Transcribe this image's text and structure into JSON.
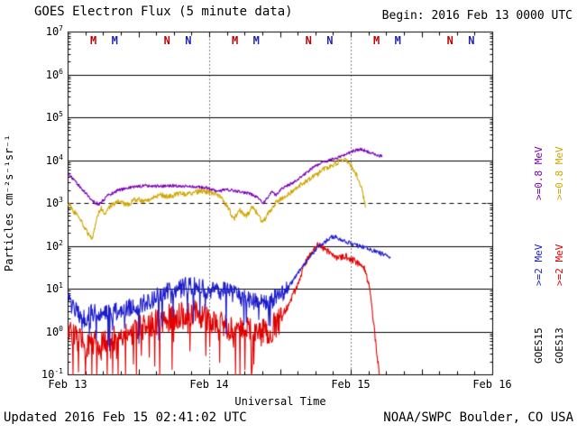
{
  "header": {
    "title": "GOES Electron Flux (5 minute data)",
    "begin": "Begin: 2016 Feb 13 0000 UTC"
  },
  "footer": {
    "updated": "Updated 2016 Feb 15 02:41:02 UTC",
    "credit": "NOAA/SWPC Boulder, CO USA"
  },
  "legend": {
    "goes15": {
      "name": "GOES15",
      "e08": ">=0.8 MeV",
      "e2": ">=2 MeV",
      "e08_color": "#7a00b4",
      "e2_color": "#1c1ccc"
    },
    "goes13": {
      "name": "GOES13",
      "e08": ">=0.8 MeV",
      "e2": ">=2 MeV",
      "e08_color": "#cfa600",
      "e2_color": "#e00000"
    }
  },
  "chart_data": {
    "type": "line",
    "title": "GOES Electron Flux (5 minute data)",
    "xlabel": "Universal Time",
    "ylabel": "Particles cm⁻²s⁻¹sr⁻¹",
    "x_range_days": [
      0,
      3
    ],
    "y_log_range": [
      -1,
      7
    ],
    "x_tick_labels": [
      "Feb 13",
      "Feb 14",
      "Feb 15",
      "Feb 16"
    ],
    "y_tick_exponents": [
      7,
      6,
      5,
      4,
      3,
      2,
      1,
      0,
      -1
    ],
    "threshold_log10": 3,
    "grid": true,
    "noise_seed": 20160213,
    "markers": [
      {
        "t": 0.185,
        "label": "M",
        "color": "#c00000"
      },
      {
        "t": 0.335,
        "label": "M",
        "color": "#2121b0"
      },
      {
        "t": 0.705,
        "label": "N",
        "color": "#c00000"
      },
      {
        "t": 0.855,
        "label": "N",
        "color": "#2121b0"
      },
      {
        "t": 1.185,
        "label": "M",
        "color": "#c00000"
      },
      {
        "t": 1.335,
        "label": "M",
        "color": "#2121b0"
      },
      {
        "t": 1.705,
        "label": "N",
        "color": "#c00000"
      },
      {
        "t": 1.855,
        "label": "N",
        "color": "#2121b0"
      },
      {
        "t": 2.185,
        "label": "M",
        "color": "#c00000"
      },
      {
        "t": 2.335,
        "label": "M",
        "color": "#2121b0"
      },
      {
        "t": 2.705,
        "label": "N",
        "color": "#c00000"
      },
      {
        "t": 2.855,
        "label": "N",
        "color": "#2121b0"
      }
    ],
    "series": [
      {
        "name": "GOES13 >=0.8 MeV",
        "satellite": "GOES13",
        "energy": ">=0.8 MeV",
        "color": "#cfa600",
        "noise": {
          "amp": 0.06,
          "spike_prob": 0,
          "spike_depth": 0,
          "calm_after": 99,
          "calm_amp": 0.06
        },
        "points": [
          [
            0.0,
            1000
          ],
          [
            0.05,
            600
          ],
          [
            0.1,
            350
          ],
          [
            0.14,
            200
          ],
          [
            0.17,
            150
          ],
          [
            0.2,
            400
          ],
          [
            0.23,
            800
          ],
          [
            0.26,
            550
          ],
          [
            0.3,
            900
          ],
          [
            0.36,
            1100
          ],
          [
            0.42,
            950
          ],
          [
            0.48,
            1250
          ],
          [
            0.54,
            1100
          ],
          [
            0.6,
            1400
          ],
          [
            0.66,
            1550
          ],
          [
            0.72,
            1450
          ],
          [
            0.78,
            1700
          ],
          [
            0.84,
            1600
          ],
          [
            0.9,
            1850
          ],
          [
            0.96,
            1950
          ],
          [
            1.02,
            1700
          ],
          [
            1.08,
            1400
          ],
          [
            1.14,
            700
          ],
          [
            1.17,
            420
          ],
          [
            1.21,
            700
          ],
          [
            1.26,
            500
          ],
          [
            1.3,
            800
          ],
          [
            1.34,
            600
          ],
          [
            1.375,
            350
          ],
          [
            1.41,
            550
          ],
          [
            1.45,
            900
          ],
          [
            1.5,
            1250
          ],
          [
            1.56,
            1700
          ],
          [
            1.62,
            2400
          ],
          [
            1.68,
            3200
          ],
          [
            1.74,
            4300
          ],
          [
            1.8,
            6000
          ],
          [
            1.86,
            7800
          ],
          [
            1.92,
            9500
          ],
          [
            1.96,
            10000
          ],
          [
            2.0,
            7500
          ],
          [
            2.04,
            4500
          ],
          [
            2.07,
            2500
          ],
          [
            2.09,
            1300
          ],
          [
            2.105,
            800
          ]
        ]
      },
      {
        "name": "GOES15 >=0.8 MeV",
        "satellite": "GOES15",
        "energy": ">=0.8 MeV",
        "color": "#7a00b4",
        "noise": {
          "amp": 0.035,
          "spike_prob": 0,
          "spike_depth": 0,
          "calm_after": 99,
          "calm_amp": 0.035
        },
        "points": [
          [
            0.0,
            5000
          ],
          [
            0.06,
            3000
          ],
          [
            0.12,
            1800
          ],
          [
            0.18,
            1100
          ],
          [
            0.22,
            950
          ],
          [
            0.28,
            1500
          ],
          [
            0.35,
            2000
          ],
          [
            0.45,
            2400
          ],
          [
            0.55,
            2600
          ],
          [
            0.65,
            2500
          ],
          [
            0.75,
            2600
          ],
          [
            0.85,
            2500
          ],
          [
            0.95,
            2400
          ],
          [
            1.0,
            2200
          ],
          [
            1.06,
            1900
          ],
          [
            1.12,
            2100
          ],
          [
            1.2,
            1900
          ],
          [
            1.28,
            1700
          ],
          [
            1.34,
            1400
          ],
          [
            1.38,
            1000
          ],
          [
            1.41,
            1400
          ],
          [
            1.44,
            2000
          ],
          [
            1.47,
            1500
          ],
          [
            1.5,
            2100
          ],
          [
            1.55,
            2600
          ],
          [
            1.6,
            3200
          ],
          [
            1.66,
            4500
          ],
          [
            1.72,
            6500
          ],
          [
            1.78,
            8500
          ],
          [
            1.84,
            10000
          ],
          [
            1.9,
            11500
          ],
          [
            1.96,
            14000
          ],
          [
            2.02,
            17000
          ],
          [
            2.07,
            18500
          ],
          [
            2.12,
            16000
          ],
          [
            2.17,
            14000
          ],
          [
            2.22,
            12500
          ]
        ]
      },
      {
        "name": "GOES13 >=2 MeV",
        "satellite": "GOES13",
        "energy": ">=2 MeV",
        "color": "#e00000",
        "noise": {
          "amp": 0.32,
          "spike_prob": 0.12,
          "spike_depth": 1.2,
          "calm_after": 1.52,
          "calm_amp": 0.08
        },
        "points": [
          [
            0.0,
            1.2
          ],
          [
            0.06,
            0.7
          ],
          [
            0.12,
            0.45
          ],
          [
            0.18,
            0.6
          ],
          [
            0.25,
            0.5
          ],
          [
            0.32,
            0.7
          ],
          [
            0.4,
            0.9
          ],
          [
            0.48,
            1.1
          ],
          [
            0.56,
            1.4
          ],
          [
            0.64,
            1.8
          ],
          [
            0.72,
            2.2
          ],
          [
            0.8,
            2.5
          ],
          [
            0.88,
            2.8
          ],
          [
            0.96,
            2.2
          ],
          [
            1.04,
            1.7
          ],
          [
            1.12,
            1.3
          ],
          [
            1.2,
            1.1
          ],
          [
            1.28,
            1.3
          ],
          [
            1.36,
            0.9
          ],
          [
            1.44,
            1.2
          ],
          [
            1.5,
            2.0
          ],
          [
            1.56,
            4.5
          ],
          [
            1.62,
            12
          ],
          [
            1.66,
            30
          ],
          [
            1.7,
            60
          ],
          [
            1.74,
            90
          ],
          [
            1.77,
            105
          ],
          [
            1.81,
            85
          ],
          [
            1.86,
            65
          ],
          [
            1.91,
            52
          ],
          [
            1.96,
            58
          ],
          [
            2.01,
            48
          ],
          [
            2.06,
            38
          ],
          [
            2.1,
            28
          ],
          [
            2.13,
            10
          ],
          [
            2.16,
            1.5
          ],
          [
            2.185,
            0.25
          ],
          [
            2.2,
            0.1
          ]
        ]
      },
      {
        "name": "GOES15 >=2 MeV",
        "satellite": "GOES15",
        "energy": ">=2 MeV",
        "color": "#1c1ccc",
        "noise": {
          "amp": 0.22,
          "spike_prob": 0.05,
          "spike_depth": 0.9,
          "calm_after": 1.56,
          "calm_amp": 0.05
        },
        "points": [
          [
            0.0,
            6
          ],
          [
            0.06,
            3
          ],
          [
            0.12,
            2
          ],
          [
            0.18,
            3
          ],
          [
            0.25,
            2.5
          ],
          [
            0.32,
            3
          ],
          [
            0.4,
            3.5
          ],
          [
            0.48,
            4
          ],
          [
            0.56,
            5
          ],
          [
            0.64,
            7
          ],
          [
            0.72,
            9
          ],
          [
            0.8,
            11
          ],
          [
            0.88,
            12
          ],
          [
            0.96,
            10
          ],
          [
            1.04,
            9
          ],
          [
            1.12,
            9
          ],
          [
            1.2,
            7
          ],
          [
            1.28,
            6
          ],
          [
            1.36,
            4.5
          ],
          [
            1.44,
            5.5
          ],
          [
            1.52,
            8
          ],
          [
            1.58,
            14
          ],
          [
            1.64,
            28
          ],
          [
            1.7,
            55
          ],
          [
            1.76,
            90
          ],
          [
            1.82,
            130
          ],
          [
            1.87,
            170
          ],
          [
            1.91,
            155
          ],
          [
            1.95,
            135
          ],
          [
            2.0,
            115
          ],
          [
            2.06,
            100
          ],
          [
            2.12,
            88
          ],
          [
            2.18,
            75
          ],
          [
            2.24,
            62
          ],
          [
            2.28,
            55
          ]
        ]
      }
    ]
  }
}
